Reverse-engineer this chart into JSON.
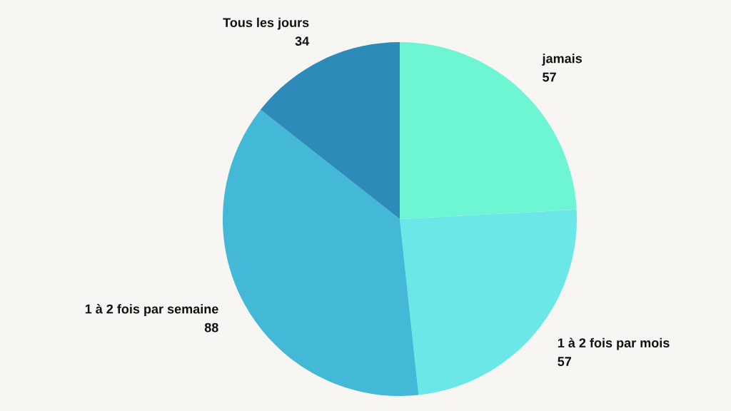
{
  "chart_data": {
    "type": "pie",
    "categories": [
      "jamais",
      "1 à 2 fois par mois",
      "1 à 2 fois par semaine",
      "Tous les jours"
    ],
    "values": [
      57,
      57,
      88,
      34
    ],
    "colors": [
      "#6ef5d4",
      "#6ae7e6",
      "#43b9d7",
      "#2d8bba"
    ],
    "data_labels": true
  }
}
